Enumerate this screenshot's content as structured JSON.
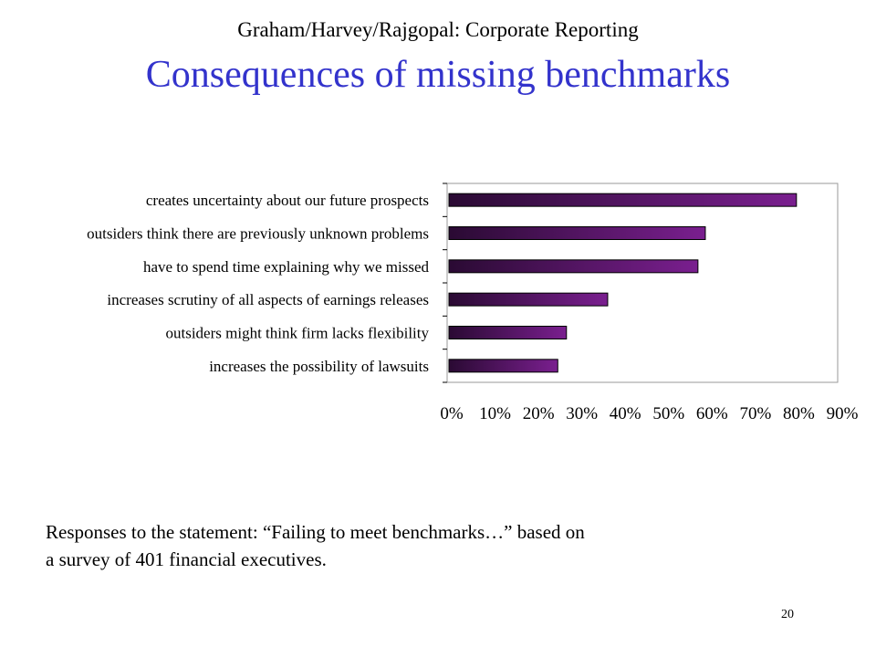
{
  "slide": {
    "header": "Graham/Harvey/Rajgopal: Corporate Reporting",
    "title": "Consequences of missing benchmarks",
    "caption_line1": "Responses to the statement: “Failing to meet benchmarks…” based on",
    "caption_line2": "a survey of 401 financial executives.",
    "page_number": "20"
  },
  "colors": {
    "title": "#3333cc",
    "bar_dark": "#2a0a33",
    "bar_light": "#7a1f8f",
    "plot_border": "#999999"
  },
  "chart_data": {
    "type": "bar",
    "orientation": "horizontal",
    "categories": [
      "creates uncertainty about our future prospects",
      "outsiders think there are previously unknown problems",
      "have to spend time explaining why we missed",
      "increases scrutiny of all aspects of earnings releases",
      "outsiders might think firm lacks flexibility",
      "increases the possibility of lawsuits"
    ],
    "values": [
      0.805,
      0.595,
      0.578,
      0.37,
      0.275,
      0.255
    ],
    "xlim": [
      0,
      0.9
    ],
    "xticks": [
      0,
      0.1,
      0.2,
      0.3,
      0.4,
      0.5,
      0.6,
      0.7,
      0.8,
      0.9
    ],
    "xtick_labels": [
      "0%",
      "10%",
      "20%",
      "30%",
      "40%",
      "50%",
      "60%",
      "70%",
      "80%",
      "90%"
    ],
    "grid": false,
    "legend": "none"
  }
}
